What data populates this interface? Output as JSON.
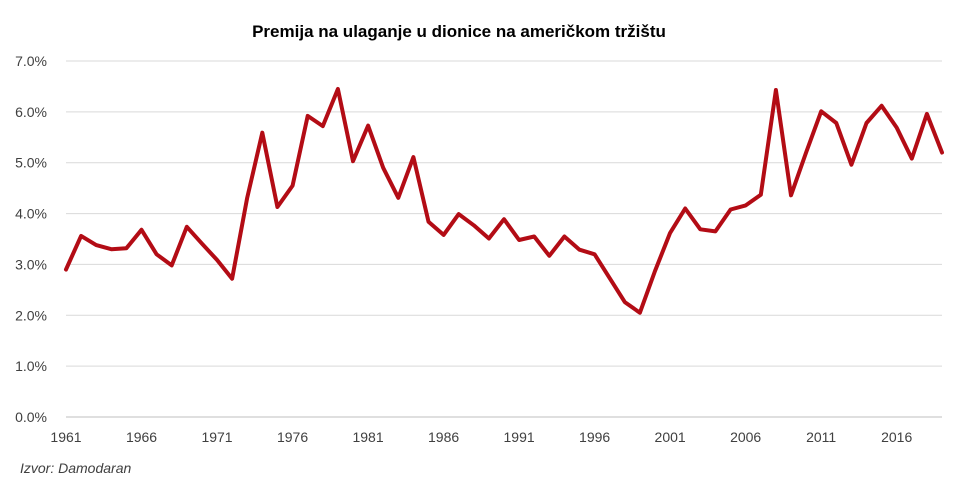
{
  "chart_data": {
    "type": "line",
    "title": "Premija na ulaganje u dionice na američkom tržištu",
    "xlabel": "",
    "ylabel": "",
    "x": [
      1961,
      1962,
      1963,
      1964,
      1965,
      1966,
      1967,
      1968,
      1969,
      1970,
      1971,
      1972,
      1973,
      1974,
      1975,
      1976,
      1977,
      1978,
      1979,
      1980,
      1981,
      1982,
      1983,
      1984,
      1985,
      1986,
      1987,
      1988,
      1989,
      1990,
      1991,
      1992,
      1993,
      1994,
      1995,
      1996,
      1997,
      1998,
      1999,
      2000,
      2001,
      2002,
      2003,
      2004,
      2005,
      2006,
      2007,
      2008,
      2009,
      2010,
      2011,
      2012,
      2013,
      2014,
      2015,
      2016,
      2017,
      2018,
      2019
    ],
    "series": [
      {
        "name": "",
        "color": "#b30c15",
        "values": [
          2.9,
          3.56,
          3.38,
          3.3,
          3.32,
          3.68,
          3.2,
          2.98,
          3.74,
          3.41,
          3.09,
          2.72,
          4.31,
          5.59,
          4.13,
          4.55,
          5.92,
          5.72,
          6.45,
          5.03,
          5.73,
          4.9,
          4.31,
          5.11,
          3.84,
          3.58,
          3.99,
          3.77,
          3.51,
          3.89,
          3.48,
          3.55,
          3.17,
          3.55,
          3.29,
          3.2,
          2.73,
          2.26,
          2.05,
          2.87,
          3.62,
          4.1,
          3.69,
          3.65,
          4.08,
          4.16,
          4.37,
          6.43,
          4.36,
          5.2,
          6.01,
          5.78,
          4.96,
          5.78,
          6.12,
          5.69,
          5.08,
          5.96,
          5.2
        ]
      }
    ],
    "y_tick_labels": [
      "0.0%",
      "1.0%",
      "2.0%",
      "3.0%",
      "4.0%",
      "5.0%",
      "6.0%",
      "7.0%"
    ],
    "x_tick_labels": [
      "1961",
      "1966",
      "1971",
      "1976",
      "1981",
      "1986",
      "1991",
      "1996",
      "2001",
      "2006",
      "2011",
      "2016"
    ],
    "ylim": [
      0,
      7
    ],
    "xlim": [
      1961,
      2019
    ],
    "grid": "horizontal",
    "legend": "none"
  },
  "source": "Izvor: Damodaran"
}
